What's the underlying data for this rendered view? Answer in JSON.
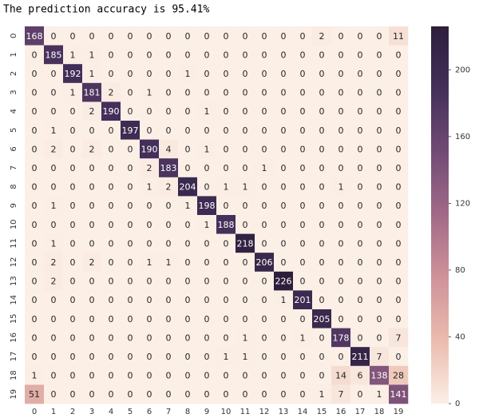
{
  "chart_data": {
    "type": "heatmap",
    "title": "The prediction accuracy is 95.41%",
    "categories": [
      "0",
      "1",
      "2",
      "3",
      "4",
      "5",
      "6",
      "7",
      "8",
      "9",
      "10",
      "11",
      "12",
      "13",
      "14",
      "15",
      "16",
      "17",
      "18",
      "19"
    ],
    "values": [
      [
        168,
        0,
        0,
        0,
        0,
        0,
        0,
        0,
        0,
        0,
        0,
        0,
        0,
        0,
        0,
        2,
        0,
        0,
        0,
        11
      ],
      [
        0,
        185,
        1,
        1,
        0,
        0,
        0,
        0,
        0,
        0,
        0,
        0,
        0,
        0,
        0,
        0,
        0,
        0,
        0,
        0
      ],
      [
        0,
        0,
        192,
        1,
        0,
        0,
        0,
        0,
        1,
        0,
        0,
        0,
        0,
        0,
        0,
        0,
        0,
        0,
        0,
        0
      ],
      [
        0,
        0,
        1,
        181,
        2,
        0,
        1,
        0,
        0,
        0,
        0,
        0,
        0,
        0,
        0,
        0,
        0,
        0,
        0,
        0
      ],
      [
        0,
        0,
        0,
        2,
        190,
        0,
        0,
        0,
        0,
        1,
        0,
        0,
        0,
        0,
        0,
        0,
        0,
        0,
        0,
        0
      ],
      [
        0,
        1,
        0,
        0,
        0,
        197,
        0,
        0,
        0,
        0,
        0,
        0,
        0,
        0,
        0,
        0,
        0,
        0,
        0,
        0
      ],
      [
        0,
        2,
        0,
        2,
        0,
        0,
        190,
        4,
        0,
        1,
        0,
        0,
        0,
        0,
        0,
        0,
        0,
        0,
        0,
        0
      ],
      [
        0,
        0,
        0,
        0,
        0,
        0,
        2,
        183,
        0,
        0,
        0,
        0,
        1,
        0,
        0,
        0,
        0,
        0,
        0,
        0
      ],
      [
        0,
        0,
        0,
        0,
        0,
        0,
        1,
        2,
        204,
        0,
        1,
        1,
        0,
        0,
        0,
        0,
        1,
        0,
        0,
        0
      ],
      [
        0,
        1,
        0,
        0,
        0,
        0,
        0,
        0,
        1,
        198,
        0,
        0,
        0,
        0,
        0,
        0,
        0,
        0,
        0,
        0
      ],
      [
        0,
        0,
        0,
        0,
        0,
        0,
        0,
        0,
        0,
        1,
        188,
        0,
        0,
        0,
        0,
        0,
        0,
        0,
        0,
        0
      ],
      [
        0,
        1,
        0,
        0,
        0,
        0,
        0,
        0,
        0,
        0,
        0,
        218,
        0,
        0,
        0,
        0,
        0,
        0,
        0,
        0
      ],
      [
        0,
        2,
        0,
        2,
        0,
        0,
        1,
        1,
        0,
        0,
        0,
        0,
        206,
        0,
        0,
        0,
        0,
        0,
        0,
        0
      ],
      [
        0,
        2,
        0,
        0,
        0,
        0,
        0,
        0,
        0,
        0,
        0,
        0,
        0,
        226,
        0,
        0,
        0,
        0,
        0,
        0
      ],
      [
        0,
        0,
        0,
        0,
        0,
        0,
        0,
        0,
        0,
        0,
        0,
        0,
        0,
        1,
        201,
        0,
        0,
        0,
        0,
        0
      ],
      [
        0,
        0,
        0,
        0,
        0,
        0,
        0,
        0,
        0,
        0,
        0,
        0,
        0,
        0,
        0,
        205,
        0,
        0,
        0,
        0
      ],
      [
        0,
        0,
        0,
        0,
        0,
        0,
        0,
        0,
        0,
        0,
        0,
        1,
        0,
        0,
        1,
        0,
        178,
        0,
        0,
        7
      ],
      [
        0,
        0,
        0,
        0,
        0,
        0,
        0,
        0,
        0,
        0,
        1,
        1,
        0,
        0,
        0,
        0,
        0,
        211,
        7,
        0
      ],
      [
        1,
        0,
        0,
        0,
        0,
        0,
        0,
        0,
        0,
        0,
        0,
        0,
        0,
        0,
        0,
        0,
        14,
        6,
        138,
        28
      ],
      [
        51,
        0,
        0,
        0,
        0,
        0,
        0,
        0,
        0,
        0,
        0,
        0,
        0,
        0,
        0,
        1,
        7,
        0,
        1,
        141
      ]
    ],
    "zlim": [
      0,
      226
    ],
    "zticks": [
      0,
      40,
      80,
      120,
      160,
      200
    ],
    "colormap": [
      "#fbefe6",
      "#ebbcae",
      "#cf929a",
      "#a26a88",
      "#724b75",
      "#44305a",
      "#2d1e3c"
    ]
  }
}
